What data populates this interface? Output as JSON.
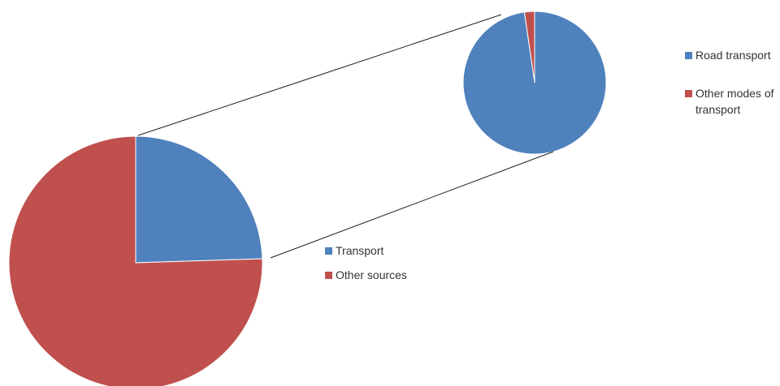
{
  "chart_data": [
    {
      "type": "pie",
      "title": "",
      "categories": [
        "Transport",
        "Other sources"
      ],
      "values": [
        24.5,
        75.5
      ],
      "colors": [
        "#4f81bd",
        "#c0504d"
      ],
      "legend": {
        "entries": [
          "Transport",
          "Other sources"
        ],
        "placement": "right"
      }
    },
    {
      "type": "pie",
      "title": "",
      "categories": [
        "Road transport",
        "Other modes of transport"
      ],
      "values": [
        97.7,
        2.3
      ],
      "colors": [
        "#4f81bd",
        "#c0504d"
      ],
      "legend": {
        "entries": [
          "Road transport",
          "Other modes of transport"
        ],
        "placement": "right"
      }
    }
  ],
  "legend_main": [
    {
      "label": "Transport",
      "color": "#4f81bd"
    },
    {
      "label": "Other sources",
      "color": "#c0504d"
    }
  ],
  "legend_detail": [
    {
      "label": "Road transport",
      "color": "#4f81bd"
    },
    {
      "label_line1": "Other modes of",
      "label_line2": "transport",
      "color": "#c0504d"
    }
  ]
}
